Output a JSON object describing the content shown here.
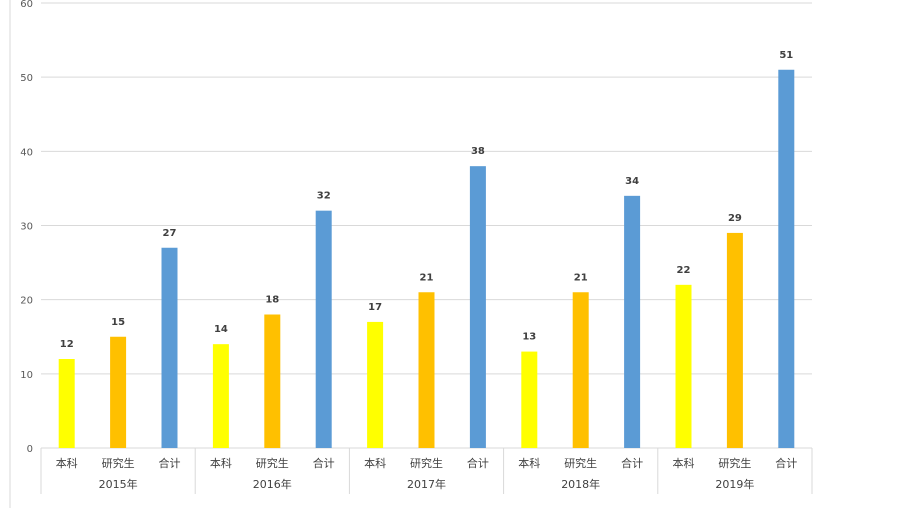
{
  "chart_data": {
    "type": "bar",
    "groups": [
      "2015年",
      "2016年",
      "2017年",
      "2018年",
      "2019年"
    ],
    "subcategories": [
      "本科",
      "研究生",
      "合计"
    ],
    "values": [
      [
        12,
        15,
        27
      ],
      [
        14,
        18,
        32
      ],
      [
        17,
        21,
        38
      ],
      [
        13,
        21,
        34
      ],
      [
        22,
        29,
        51
      ]
    ],
    "colors": [
      "#FFFF00",
      "#FFC000",
      "#5B9BD5"
    ],
    "ylim": [
      0,
      60
    ],
    "yticks": [
      0,
      10,
      20,
      30,
      40,
      50,
      60
    ],
    "grid": true,
    "legend": "none",
    "data_labels": true
  }
}
